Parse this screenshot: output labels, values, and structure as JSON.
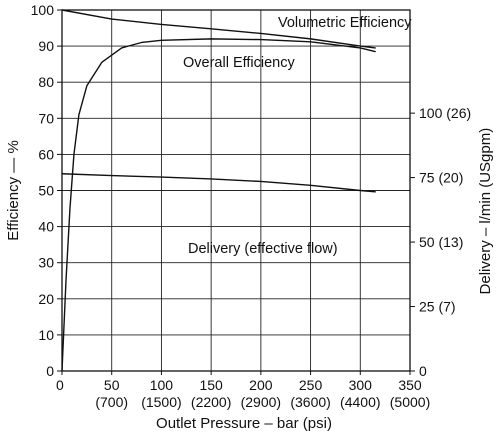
{
  "chart_data": {
    "type": "line",
    "title": "",
    "xlabel": "Outlet Pressure – bar (psi)",
    "ylabel_left": "Efficiency — %",
    "ylabel_right": "Delivery – l/min (USgpm)",
    "xlim": [
      0,
      350
    ],
    "ylim_left": [
      0,
      100
    ],
    "ylim_right": [
      0,
      140
    ],
    "grid": true,
    "x_ticks": [
      "0",
      "50",
      "100",
      "150",
      "200",
      "250",
      "300",
      "350"
    ],
    "x_ticks_psi": [
      "(700)",
      "(1500)",
      "(2200)",
      "(2900)",
      "(3600)",
      "(4400)",
      "(5000)"
    ],
    "y_left_ticks": [
      "0",
      "10",
      "20",
      "30",
      "40",
      "50",
      "60",
      "70",
      "80",
      "90",
      "100"
    ],
    "y_right_ticks": [
      {
        "value": 0,
        "label": "0"
      },
      {
        "value": 25,
        "label": "25 (7)"
      },
      {
        "value": 50,
        "label": "50 (13)"
      },
      {
        "value": 75,
        "label": "75 (20)"
      },
      {
        "value": 100,
        "label": "100 (26)"
      }
    ],
    "series": [
      {
        "name": "Volumetric Efficiency",
        "axis": "left",
        "x": [
          0,
          50,
          100,
          150,
          200,
          250,
          300,
          315
        ],
        "y": [
          100,
          97.5,
          96,
          94.8,
          93.5,
          92,
          90,
          89.5
        ]
      },
      {
        "name": "Overall Efficiency",
        "axis": "left",
        "x": [
          0,
          4,
          8,
          12,
          17,
          25,
          40,
          60,
          80,
          100,
          150,
          200,
          250,
          300,
          315
        ],
        "y": [
          0,
          25,
          45,
          60,
          71,
          79,
          85.5,
          89.5,
          91,
          91.6,
          92,
          91.8,
          91.2,
          89.5,
          88.5
        ]
      },
      {
        "name": "Delivery (effective flow)",
        "axis": "right",
        "x": [
          0,
          50,
          100,
          150,
          200,
          250,
          300,
          315
        ],
        "y": [
          76.5,
          75.8,
          75.2,
          74.5,
          73.5,
          72,
          70,
          69.5
        ]
      }
    ]
  }
}
